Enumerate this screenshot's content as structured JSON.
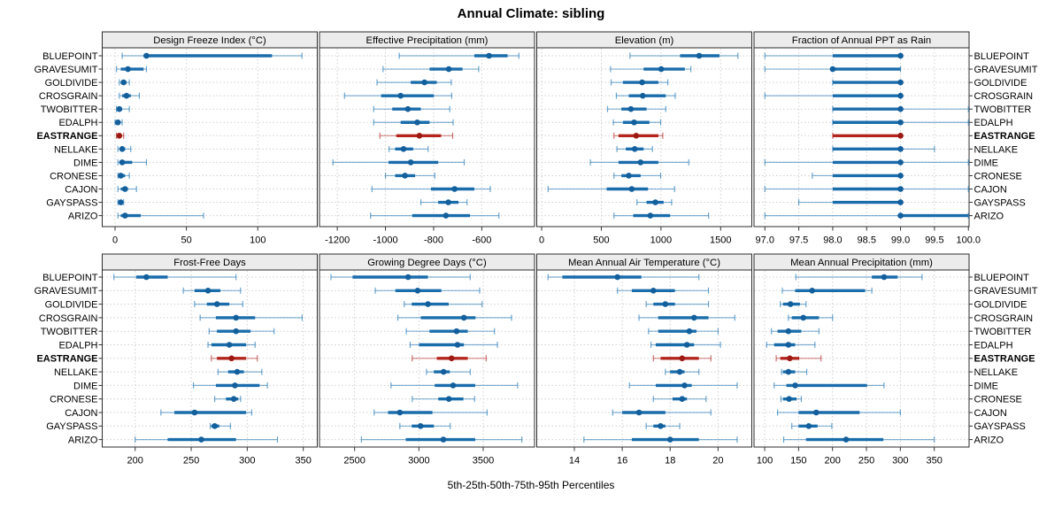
{
  "title": "Annual Climate: sibling",
  "caption": "5th-25th-50th-75th-95th Percentiles",
  "colors": {
    "blue_thin": "#1f77b4",
    "blue_thick": "#1a6dab",
    "blue_dot": "#125f9c",
    "red_thin": "#b22222",
    "red_thick": "#b3251c",
    "red_dot": "#9c1a12",
    "strip_bg": "#ececec",
    "panel_border": "#2b2b2b",
    "grid": "#cfcfcf",
    "tick": "#333333"
  },
  "chart_data": {
    "type": "dotplot",
    "layout": {
      "rows": 2,
      "cols": 4
    },
    "percentile_labels": [
      "5th",
      "25th",
      "50th",
      "75th",
      "95th"
    ],
    "sites": [
      "BLUEPOINT",
      "GRAVESUMIT",
      "GOLDIVIDE",
      "CROSGRAIN",
      "TWOBITTER",
      "EDALPH",
      "EASTRANGE",
      "NELLAKE",
      "DIME",
      "CRONESE",
      "CAJON",
      "GAYSPASS",
      "ARIZO"
    ],
    "highlight_site": "EASTRANGE",
    "panels": [
      {
        "title": "Design Freeze Index (°C)",
        "row": 0,
        "col": 0,
        "xlim": [
          -9,
          141.7
        ],
        "ticks": [
          0,
          50,
          100
        ],
        "tick_labels": [
          "0",
          "50",
          "100"
        ],
        "series": {
          "BLUEPOINT": [
            5,
            20,
            22,
            110,
            131
          ],
          "GRAVESUMIT": [
            1,
            4,
            9,
            20,
            22
          ],
          "GOLDIVIDE": [
            3,
            4,
            6,
            8,
            10
          ],
          "CROSGRAIN": [
            3,
            5,
            8,
            11,
            17
          ],
          "TWOBITTER": [
            1,
            2,
            3,
            5,
            10
          ],
          "EDALPH": [
            0,
            1,
            2,
            3,
            5
          ],
          "EASTRANGE": [
            1,
            2,
            3,
            4,
            6
          ],
          "NELLAKE": [
            2,
            4,
            5,
            7,
            11
          ],
          "DIME": [
            2,
            3,
            5,
            12,
            22
          ],
          "CRONESE": [
            2,
            3,
            4,
            7,
            10
          ],
          "CAJON": [
            2,
            4,
            7,
            9,
            15
          ],
          "GAYSPASS": [
            2,
            3,
            4,
            5,
            6
          ],
          "ARIZO": [
            2,
            4,
            7,
            18,
            62
          ]
        }
      },
      {
        "title": "Effective Precipitation (mm)",
        "row": 0,
        "col": 1,
        "xlim": [
          -1274,
          -381
        ],
        "ticks": [
          -1200,
          -1000,
          -800,
          -600
        ],
        "tick_labels": [
          "-1200",
          "-1000",
          "-800",
          "-600"
        ],
        "series": {
          "BLUEPOINT": [
            -943,
            -631,
            -570,
            -493,
            -446
          ],
          "GRAVESUMIT": [
            -1010,
            -817,
            -737,
            -680,
            -613
          ],
          "GOLDIVIDE": [
            -1035,
            -895,
            -838,
            -787,
            -727
          ],
          "CROSGRAIN": [
            -1170,
            -1018,
            -937,
            -799,
            -725
          ],
          "TWOBITTER": [
            -1049,
            -972,
            -907,
            -853,
            -733
          ],
          "EDALPH": [
            -1049,
            -937,
            -868,
            -817,
            -719
          ],
          "EASTRANGE": [
            -1023,
            -955,
            -859,
            -769,
            -721
          ],
          "NELLAKE": [
            -985,
            -960,
            -925,
            -885,
            -823
          ],
          "DIME": [
            -1218,
            -987,
            -895,
            -781,
            -673
          ],
          "CRONESE": [
            -1000,
            -960,
            -919,
            -877,
            -795
          ],
          "CAJON": [
            -1056,
            -811,
            -713,
            -631,
            -565
          ],
          "GAYSPASS": [
            -853,
            -781,
            -739,
            -697,
            -661
          ],
          "ARIZO": [
            -1062,
            -889,
            -749,
            -649,
            -529
          ]
        }
      },
      {
        "title": "Elevation (m)",
        "row": 0,
        "col": 2,
        "xlim": [
          -41,
          1761
        ],
        "ticks": [
          0,
          500,
          1000,
          1500
        ],
        "tick_labels": [
          "0",
          "500",
          "1000",
          "1500"
        ],
        "series": {
          "BLUEPOINT": [
            740,
            1160,
            1320,
            1490,
            1645
          ],
          "GRAVESUMIT": [
            577,
            854,
            1002,
            1200,
            1250
          ],
          "GOLDIVIDE": [
            582,
            681,
            842,
            978,
            1057
          ],
          "CROSGRAIN": [
            626,
            730,
            847,
            1040,
            1119
          ],
          "TWOBITTER": [
            552,
            668,
            748,
            879,
            1040
          ],
          "EDALPH": [
            601,
            681,
            775,
            903,
            997
          ],
          "EASTRANGE": [
            606,
            644,
            792,
            978,
            1015
          ],
          "NELLAKE": [
            631,
            705,
            780,
            854,
            928
          ],
          "DIME": [
            408,
            644,
            829,
            978,
            1233
          ],
          "CRONESE": [
            606,
            668,
            730,
            829,
            997
          ],
          "CAJON": [
            54,
            545,
            755,
            891,
            1114
          ],
          "GAYSPASS": [
            799,
            879,
            953,
            1022,
            1089
          ],
          "ARIZO": [
            606,
            767,
            911,
            1077,
            1399
          ]
        }
      },
      {
        "title": "Fraction of Annual PPT as Rain",
        "row": 0,
        "col": 3,
        "xlim": [
          96.84,
          100.01
        ],
        "ticks": [
          97.0,
          97.5,
          98.0,
          98.5,
          99.0,
          99.5,
          100.0
        ],
        "tick_labels": [
          "97.0",
          "97.5",
          "98.0",
          "98.5",
          "99.0",
          "99.5",
          "100.0"
        ],
        "series": {
          "BLUEPOINT": [
            97,
            98,
            99,
            99,
            99
          ],
          "GRAVESUMIT": [
            97,
            98,
            98,
            99,
            99
          ],
          "GOLDIVIDE": [
            98,
            98,
            99,
            99,
            99
          ],
          "CROSGRAIN": [
            97,
            98,
            99,
            99,
            99
          ],
          "TWOBITTER": [
            98,
            98,
            99,
            99,
            100
          ],
          "EDALPH": [
            98,
            98,
            99,
            99,
            100
          ],
          "EASTRANGE": [
            98,
            98,
            99,
            99,
            99
          ],
          "NELLAKE": [
            98,
            98,
            99,
            99,
            99.5
          ],
          "DIME": [
            97,
            98,
            99,
            99,
            100
          ],
          "CRONESE": [
            97.7,
            98,
            99,
            99,
            99
          ],
          "CAJON": [
            97,
            98,
            99,
            99,
            100
          ],
          "GAYSPASS": [
            97.5,
            98,
            99,
            99,
            99
          ],
          "ARIZO": [
            97,
            99,
            99,
            100,
            100
          ]
        }
      },
      {
        "title": "Frost-Free Days",
        "row": 1,
        "col": 0,
        "xlim": [
          170.6,
          362.5
        ],
        "ticks": [
          200,
          250,
          300,
          350
        ],
        "tick_labels": [
          "200",
          "250",
          "300",
          "350"
        ],
        "series": {
          "BLUEPOINT": [
            181,
            201,
            210,
            229,
            290
          ],
          "GRAVESUMIT": [
            243,
            253,
            265,
            276,
            294
          ],
          "GOLDIVIDE": [
            253,
            264,
            273,
            284,
            296
          ],
          "CROSGRAIN": [
            258,
            272,
            290,
            307,
            349
          ],
          "TWOBITTER": [
            266,
            273,
            290,
            303,
            324
          ],
          "EDALPH": [
            265,
            268,
            284,
            299,
            307
          ],
          "EASTRANGE": [
            268,
            273,
            286,
            299,
            309
          ],
          "NELLAKE": [
            274,
            283,
            291,
            297,
            313
          ],
          "DIME": [
            252,
            272,
            289,
            311,
            318
          ],
          "CRONESE": [
            271,
            281,
            288,
            292,
            294
          ],
          "CAJON": [
            223,
            235,
            253,
            299,
            304
          ],
          "GAYSPASS": [
            267,
            268,
            271,
            275,
            285
          ],
          "ARIZO": [
            200,
            229,
            259,
            290,
            327
          ]
        }
      },
      {
        "title": "Growing Degree Days (°C)",
        "row": 1,
        "col": 1,
        "xlim": [
          2227,
          3899
        ],
        "ticks": [
          2500,
          3000,
          3500
        ],
        "tick_labels": [
          "2500",
          "3000",
          "3500"
        ],
        "series": {
          "BLUEPOINT": [
            2316,
            2484,
            2916,
            3070,
            3399
          ],
          "GRAVESUMIT": [
            2661,
            2817,
            2990,
            3174,
            3472
          ],
          "GOLDIVIDE": [
            2886,
            2944,
            3070,
            3231,
            3491
          ],
          "CROSGRAIN": [
            2836,
            3015,
            3350,
            3440,
            3720
          ],
          "TWOBITTER": [
            2902,
            3082,
            3293,
            3380,
            3587
          ],
          "EDALPH": [
            2932,
            3001,
            3300,
            3350,
            3610
          ],
          "EASTRANGE": [
            2948,
            3139,
            3254,
            3380,
            3523
          ],
          "NELLAKE": [
            3059,
            3116,
            3192,
            3240,
            3399
          ],
          "DIME": [
            2783,
            3123,
            3266,
            3438,
            3767
          ],
          "CRONESE": [
            2948,
            3151,
            3233,
            3346,
            3433
          ],
          "CAJON": [
            2652,
            2760,
            2852,
            3105,
            3530
          ],
          "GAYSPASS": [
            2852,
            2944,
            3013,
            3116,
            3243
          ],
          "ARIZO": [
            2553,
            2898,
            3190,
            3438,
            3800
          ]
        }
      },
      {
        "title": "Mean Annual Air Temperature (°C)",
        "row": 1,
        "col": 2,
        "xlim": [
          12.43,
          21.41
        ],
        "ticks": [
          14,
          16,
          18,
          20
        ],
        "tick_labels": [
          "14",
          "16",
          "18",
          "20"
        ],
        "series": {
          "BLUEPOINT": [
            12.9,
            13.5,
            15.8,
            16.8,
            19.2
          ],
          "GRAVESUMIT": [
            15.8,
            16.4,
            17.3,
            18.2,
            19.6
          ],
          "GOLDIVIDE": [
            17.0,
            17.3,
            17.8,
            18.2,
            19.6
          ],
          "CROSGRAIN": [
            16.7,
            17.5,
            19.0,
            19.6,
            20.7
          ],
          "TWOBITTER": [
            17.1,
            17.5,
            18.8,
            19.1,
            20.0
          ],
          "EDALPH": [
            17.2,
            17.4,
            18.7,
            19.0,
            20.1
          ],
          "EASTRANGE": [
            17.3,
            17.6,
            18.5,
            19.2,
            19.7
          ],
          "NELLAKE": [
            17.8,
            18.0,
            18.4,
            18.6,
            19.2
          ],
          "DIME": [
            16.3,
            17.4,
            18.6,
            18.9,
            20.8
          ],
          "CRONESE": [
            17.3,
            18.1,
            18.5,
            18.7,
            19.5
          ],
          "CAJON": [
            15.6,
            16.0,
            16.7,
            17.8,
            19.7
          ],
          "GAYSPASS": [
            17.0,
            17.3,
            17.6,
            17.8,
            18.4
          ],
          "ARIZO": [
            14.4,
            16.4,
            18.0,
            19.2,
            20.8
          ]
        }
      },
      {
        "title": "Mean Annual Precipitation (mm)",
        "row": 1,
        "col": 3,
        "xlim": [
          84.3,
          401.3
        ],
        "ticks": [
          100,
          150,
          200,
          250,
          300,
          350
        ],
        "tick_labels": [
          "100",
          "150",
          "200",
          "250",
          "300",
          "350"
        ],
        "series": {
          "BLUEPOINT": [
            146,
            258,
            276,
            296,
            332
          ],
          "GRAVESUMIT": [
            126,
            145,
            170,
            248,
            258
          ],
          "GOLDIVIDE": [
            123,
            127,
            138,
            152,
            161
          ],
          "CROSGRAIN": [
            135,
            140,
            157,
            180,
            200
          ],
          "TWOBITTER": [
            110,
            119,
            135,
            154,
            180
          ],
          "EDALPH": [
            103,
            114,
            135,
            145,
            174
          ],
          "EASTRANGE": [
            117,
            123,
            137,
            151,
            183
          ],
          "NELLAKE": [
            125,
            127,
            135,
            145,
            162
          ],
          "DIME": [
            114,
            132,
            145,
            251,
            276
          ],
          "CRONESE": [
            124,
            127,
            136,
            147,
            154
          ],
          "CAJON": [
            119,
            150,
            176,
            240,
            300
          ],
          "GAYSPASS": [
            140,
            150,
            165,
            178,
            199
          ],
          "ARIZO": [
            128,
            161,
            220,
            275,
            350
          ]
        }
      }
    ]
  }
}
